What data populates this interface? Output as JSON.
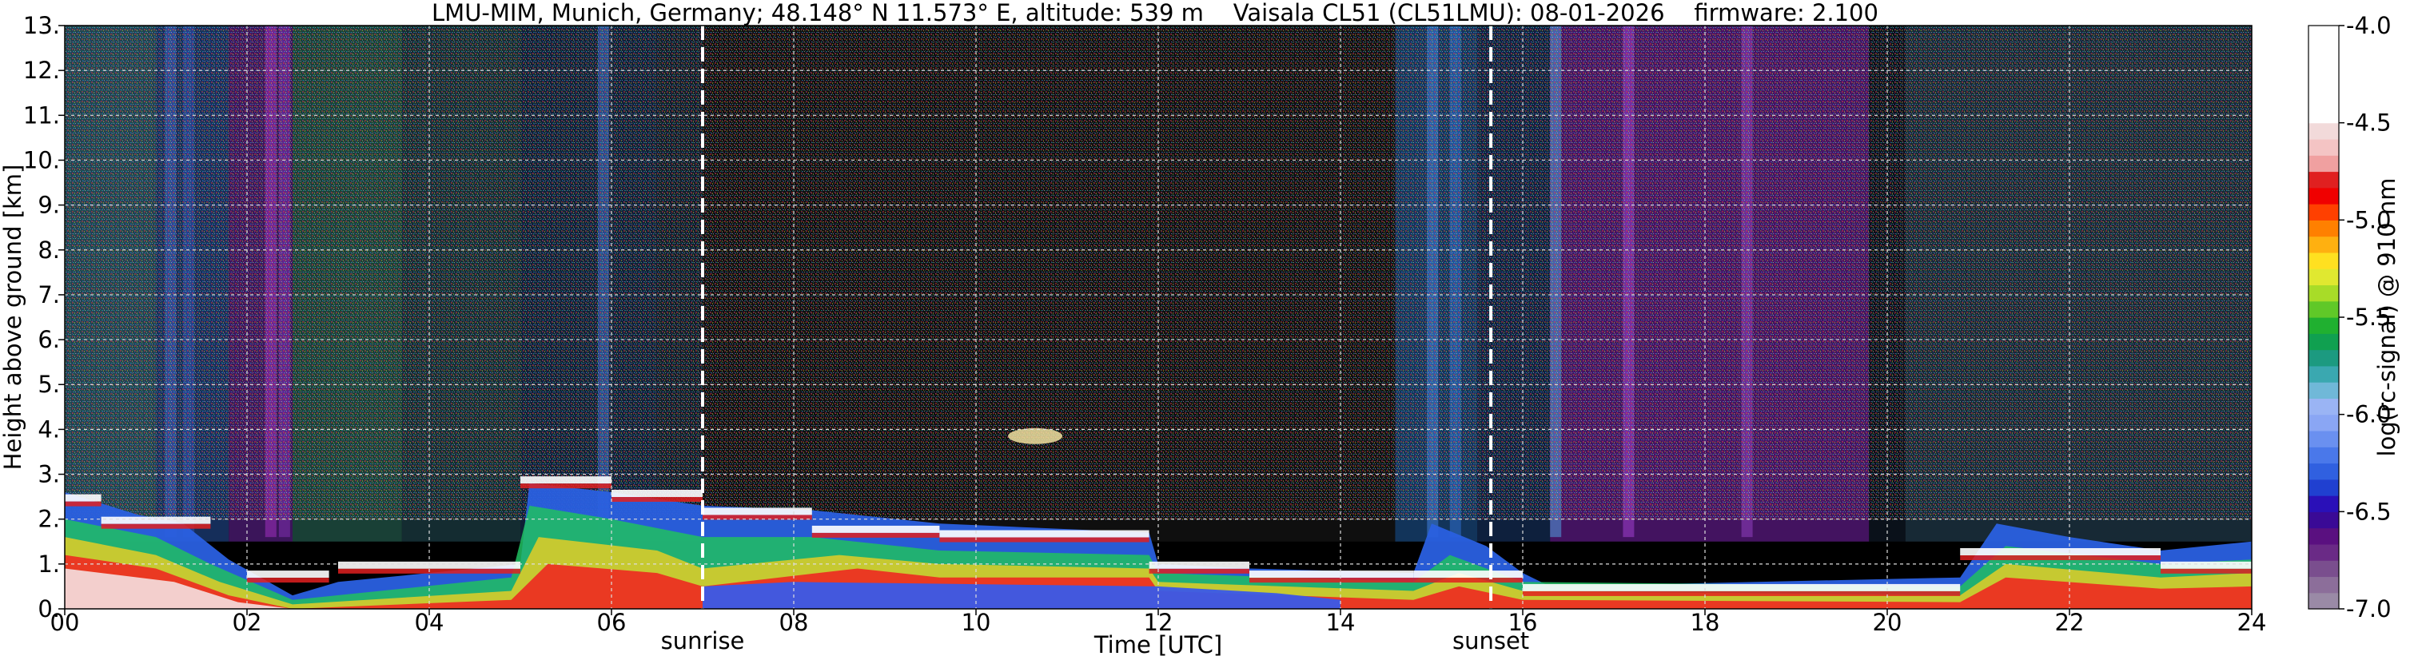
{
  "title": {
    "station": "LMU-MIM, Munich, Germany; 48.148° N 11.573° E, altitude: 539 m",
    "instrument": "Vaisala CL51 (CL51LMU): 08-01-2026",
    "firmware": "firmware: 2.100"
  },
  "chart_data": {
    "type": "heatmap",
    "xlabel": "Time [UTC]",
    "ylabel": "Height above ground [km]",
    "xlim": [
      0,
      24
    ],
    "ylim": [
      0,
      13
    ],
    "x_ticks": [
      {
        "value": 0,
        "label": "00"
      },
      {
        "value": 2,
        "label": "02"
      },
      {
        "value": 4,
        "label": "04"
      },
      {
        "value": 6,
        "label": "06"
      },
      {
        "value": 8,
        "label": "08"
      },
      {
        "value": 10,
        "label": "10"
      },
      {
        "value": 12,
        "label": "12"
      },
      {
        "value": 14,
        "label": "14"
      },
      {
        "value": 16,
        "label": "16"
      },
      {
        "value": 18,
        "label": "18"
      },
      {
        "value": 20,
        "label": "20"
      },
      {
        "value": 22,
        "label": "22"
      },
      {
        "value": 24,
        "label": "24"
      }
    ],
    "y_ticks": [
      {
        "value": 0,
        "label": "0."
      },
      {
        "value": 1,
        "label": "1."
      },
      {
        "value": 2,
        "label": "2."
      },
      {
        "value": 3,
        "label": "3."
      },
      {
        "value": 4,
        "label": "4."
      },
      {
        "value": 5,
        "label": "5."
      },
      {
        "value": 6,
        "label": "6."
      },
      {
        "value": 7,
        "label": "7."
      },
      {
        "value": 8,
        "label": "8."
      },
      {
        "value": 9,
        "label": "9."
      },
      {
        "value": 10,
        "label": "10."
      },
      {
        "value": 11,
        "label": "11."
      },
      {
        "value": 12,
        "label": "12."
      },
      {
        "value": 13,
        "label": "13."
      }
    ],
    "grid": true,
    "markers": [
      {
        "label": "sunrise",
        "time": 7.0
      },
      {
        "label": "sunset",
        "time": 15.65
      }
    ],
    "colorbar": {
      "label": "log(rc-signal) @ 910 nm",
      "range": [
        -7.0,
        -4.0
      ],
      "ticks": [
        {
          "value": -4.0,
          "label": "-4.0"
        },
        {
          "value": -4.5,
          "label": "-4.5"
        },
        {
          "value": -5.0,
          "label": "-5.0"
        },
        {
          "value": -5.5,
          "label": "-5.5"
        },
        {
          "value": -6.0,
          "label": "-6.0"
        },
        {
          "value": -6.5,
          "label": "-6.5"
        },
        {
          "value": -7.0,
          "label": "-7.0"
        }
      ],
      "colors_low_to_high": [
        "#9a8aa6",
        "#8c6e9a",
        "#7a4e8e",
        "#6a2a86",
        "#5a1080",
        "#3a0a96",
        "#2a10b8",
        "#2040d0",
        "#3060e0",
        "#4a78ea",
        "#6a90f0",
        "#8aa6f4",
        "#9ab4f4",
        "#70b8d8",
        "#3aa8b0",
        "#1c9a80",
        "#10a050",
        "#20b030",
        "#60c828",
        "#a8dc28",
        "#e0e830",
        "#ffe020",
        "#ffb010",
        "#ff8000",
        "#ff4000",
        "#f00000",
        "#e02020",
        "#f0a0a0",
        "#f4c4c4",
        "#f2dada",
        "#ffffff",
        "#ffffff",
        "#ffffff",
        "#ffffff",
        "#ffffff",
        "#ffffff"
      ]
    },
    "cloud_base_layers": [
      {
        "start": 0.0,
        "end": 0.4,
        "height_km": 2.5
      },
      {
        "start": 0.4,
        "end": 1.6,
        "height_km": 2.0
      },
      {
        "start": 2.0,
        "end": 2.9,
        "height_km": 0.8
      },
      {
        "start": 3.0,
        "end": 5.0,
        "height_km": 1.0
      },
      {
        "start": 5.0,
        "end": 6.0,
        "height_km": 2.9
      },
      {
        "start": 6.0,
        "end": 7.0,
        "height_km": 2.6
      },
      {
        "start": 7.0,
        "end": 8.2,
        "height_km": 2.2
      },
      {
        "start": 8.2,
        "end": 9.6,
        "height_km": 1.8
      },
      {
        "start": 9.6,
        "end": 11.9,
        "height_km": 1.7
      },
      {
        "start": 11.9,
        "end": 13.0,
        "height_km": 1.0
      },
      {
        "start": 13.0,
        "end": 14.8,
        "height_km": 0.8
      },
      {
        "start": 14.8,
        "end": 16.0,
        "height_km": 0.8
      },
      {
        "start": 16.0,
        "end": 20.8,
        "height_km": 0.5
      },
      {
        "start": 20.8,
        "end": 23.0,
        "height_km": 1.3
      },
      {
        "start": 23.0,
        "end": 24.0,
        "height_km": 1.0
      }
    ]
  }
}
